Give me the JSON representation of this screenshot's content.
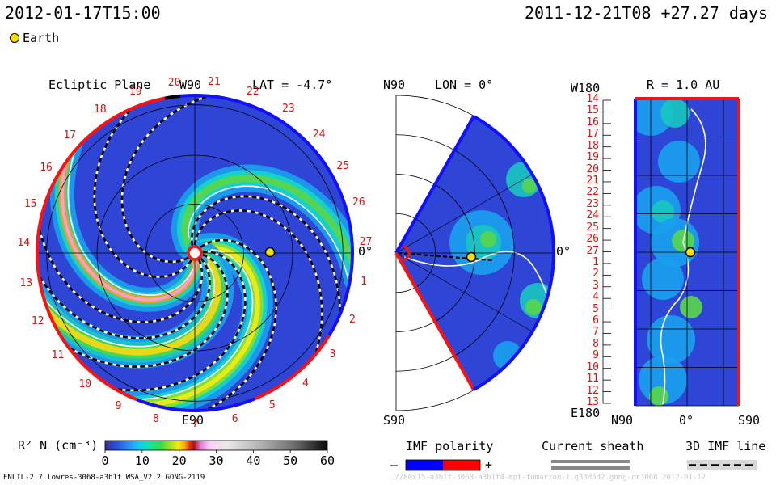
{
  "header": {
    "date_left": "2012-01-17T15:00",
    "date_right": "2011-12-21T08 +27.27 days",
    "earth_label": "Earth"
  },
  "panels": {
    "ecliptic": {
      "title": "Ecliptic Plane",
      "north_label": "W90",
      "south_label": "E90",
      "lat_label": "LAT = -4.7°",
      "zero_label": "0°"
    },
    "meridional": {
      "north_label": "N90",
      "south_label": "S90",
      "lon_label": "LON = 0°",
      "zero_label": "0°"
    },
    "sphere": {
      "top_left_label": "W180",
      "bottom_left_label": "E180",
      "r_label": "R = 1.0 AU",
      "x_labels": [
        "N90",
        "0°",
        "S90"
      ]
    }
  },
  "colorbar": {
    "label": "R² N (cm⁻³)",
    "ticks": [
      "0",
      "10",
      "20",
      "30",
      "40",
      "50",
      "60"
    ]
  },
  "legends": {
    "imf_title": "IMF polarity",
    "imf_minus": "–",
    "imf_plus": "+",
    "sheath_title": "Current sheath",
    "imf_line_title": "3D IMF line"
  },
  "footer": {
    "model_info": "ENLIL-2.7 lowres-3068-a3b1f WSA_V2.2 GONG-2119",
    "watermark": ".//80x15-a3b1f-3068-a3b1f4-mpt-fumarion-1.q33d5d2.gong-cr3068   2012-01-12"
  },
  "chart_data": [
    {
      "type": "heatmap",
      "title": "Ecliptic Plane",
      "quantity": "R² N (cm⁻³)",
      "range": [
        0,
        60
      ],
      "carrington_rotation_day_labels": [
        "20",
        "21",
        "22",
        "23",
        "24",
        "25",
        "26",
        "27",
        "1",
        "2",
        "3",
        "4",
        "5",
        "6",
        "7",
        "8",
        "9",
        "10",
        "11",
        "12",
        "13",
        "14",
        "15",
        "16",
        "17",
        "18",
        "19"
      ],
      "earth_position": {
        "longitude_deg": 0,
        "r_au": 1.0
      }
    },
    {
      "type": "heatmap",
      "title": "LON = 0°",
      "earth_position": {
        "latitude_deg": 0,
        "r_au": 1.0
      }
    },
    {
      "type": "heatmap",
      "title": "R = 1.0 AU",
      "y_labels": [
        "14",
        "15",
        "16",
        "17",
        "18",
        "19",
        "20",
        "21",
        "22",
        "23",
        "24",
        "25",
        "26",
        "27",
        "1",
        "2",
        "3",
        "4",
        "5",
        "6",
        "7",
        "8",
        "9",
        "10",
        "11",
        "12",
        "13"
      ],
      "x_labels": [
        "N90",
        "0°",
        "S90"
      ]
    }
  ]
}
